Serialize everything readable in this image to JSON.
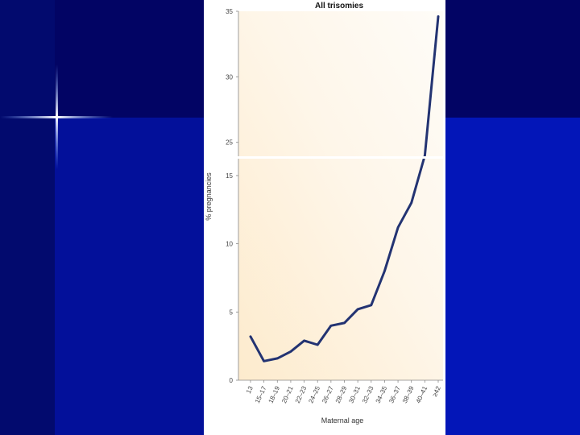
{
  "chart_data": {
    "type": "line",
    "title": "All trisomies",
    "xlabel": "Maternal age",
    "ylabel": "% pregnancies",
    "categories": [
      "13",
      "15–17",
      "18–19",
      "20–21",
      "22–23",
      "24–25",
      "26–27",
      "28–29",
      "30–31",
      "32–33",
      "34–35",
      "36–37",
      "38–39",
      "40–41",
      "≥42"
    ],
    "y_ticks_lower": [
      "0",
      "5",
      "10",
      "15"
    ],
    "y_ticks_upper": [
      "25",
      "30",
      "35"
    ],
    "axis_break": true,
    "lower_range": [
      0,
      16
    ],
    "upper_range": [
      24,
      35
    ],
    "series": [
      {
        "values": [
          3.2,
          1.4,
          1.6,
          2.1,
          2.9,
          2.6,
          4.0,
          4.2,
          5.2,
          5.5,
          8.0,
          11.2,
          13.0,
          24.0,
          34.6
        ]
      }
    ],
    "line_color": "#233372",
    "grid": false
  }
}
